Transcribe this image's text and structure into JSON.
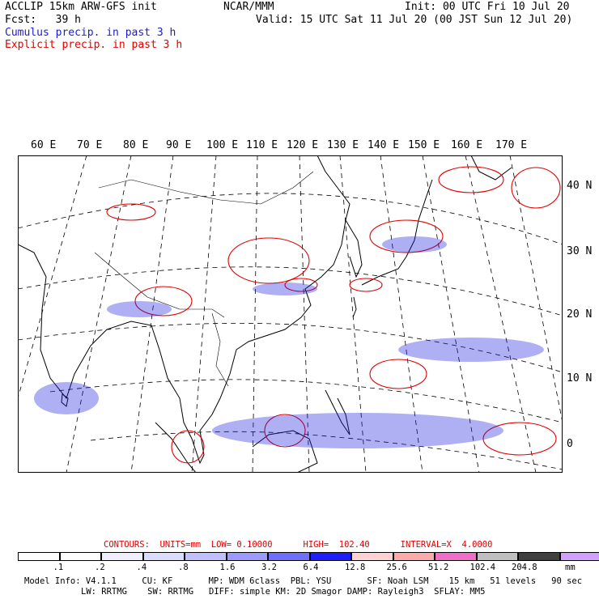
{
  "header": {
    "line1_left": "ACCLIP 15km ARW-GFS init",
    "line1_center": "NCAR/MMM",
    "line1_right": "Init: 00 UTC Fri 10 Jul 20",
    "line2_left": "Fcst:   39 h",
    "line2_right": "Valid: 15 UTC Sat 11 Jul 20 (00 JST Sun 12 Jul 20)",
    "legend_cumulus": "Cumulus precip. in past 3 h",
    "legend_explicit": "Explicit precip. in past 3 h"
  },
  "colors": {
    "cumulus": "#1a1adc",
    "explicit": "#e00000",
    "coast": "#000000",
    "grid": "#000000"
  },
  "map": {
    "lon_labels": [
      "60 E",
      "70 E",
      "80 E",
      "90 E",
      "100 E",
      "110 E",
      "120 E",
      "130 E",
      "140 E",
      "150 E",
      "160 E",
      "170 E"
    ],
    "lat_labels": [
      "40 N",
      "30 N",
      "20 N",
      "10 N",
      "0"
    ]
  },
  "contour_info": {
    "text": "CONTOURS:  UNITS=mm  LOW= 0.10000      HIGH=  102.40      INTERVAL=X  4.0000"
  },
  "colorbar": {
    "labels": [
      ".1",
      ".2",
      ".4",
      ".8",
      "1.6",
      "3.2",
      "6.4",
      "12.8",
      "25.6",
      "51.2",
      "102.4",
      "204.8"
    ],
    "unit": "mm",
    "colors": [
      "#ffffff",
      "#ffffff",
      "#eeeeff",
      "#dcdcff",
      "#c0c0ff",
      "#9a9aff",
      "#6e6eff",
      "#1e1eff",
      "#ffd2d2",
      "#ffaaaa",
      "#f06ec8",
      "#bfbfbf",
      "#404040",
      "#d2a0ff"
    ]
  },
  "model_info": {
    "line1": "Model Info: V4.1.1     CU: KF       MP: WDM 6class  PBL: YSU       SF: Noah LSM    15 km   51 levels   90 sec",
    "line2": "LW: RRTMG    SW: RRTMG   DIFF: simple KM: 2D Smagor DAMP: Rayleigh3  SFLAY: MM5"
  }
}
